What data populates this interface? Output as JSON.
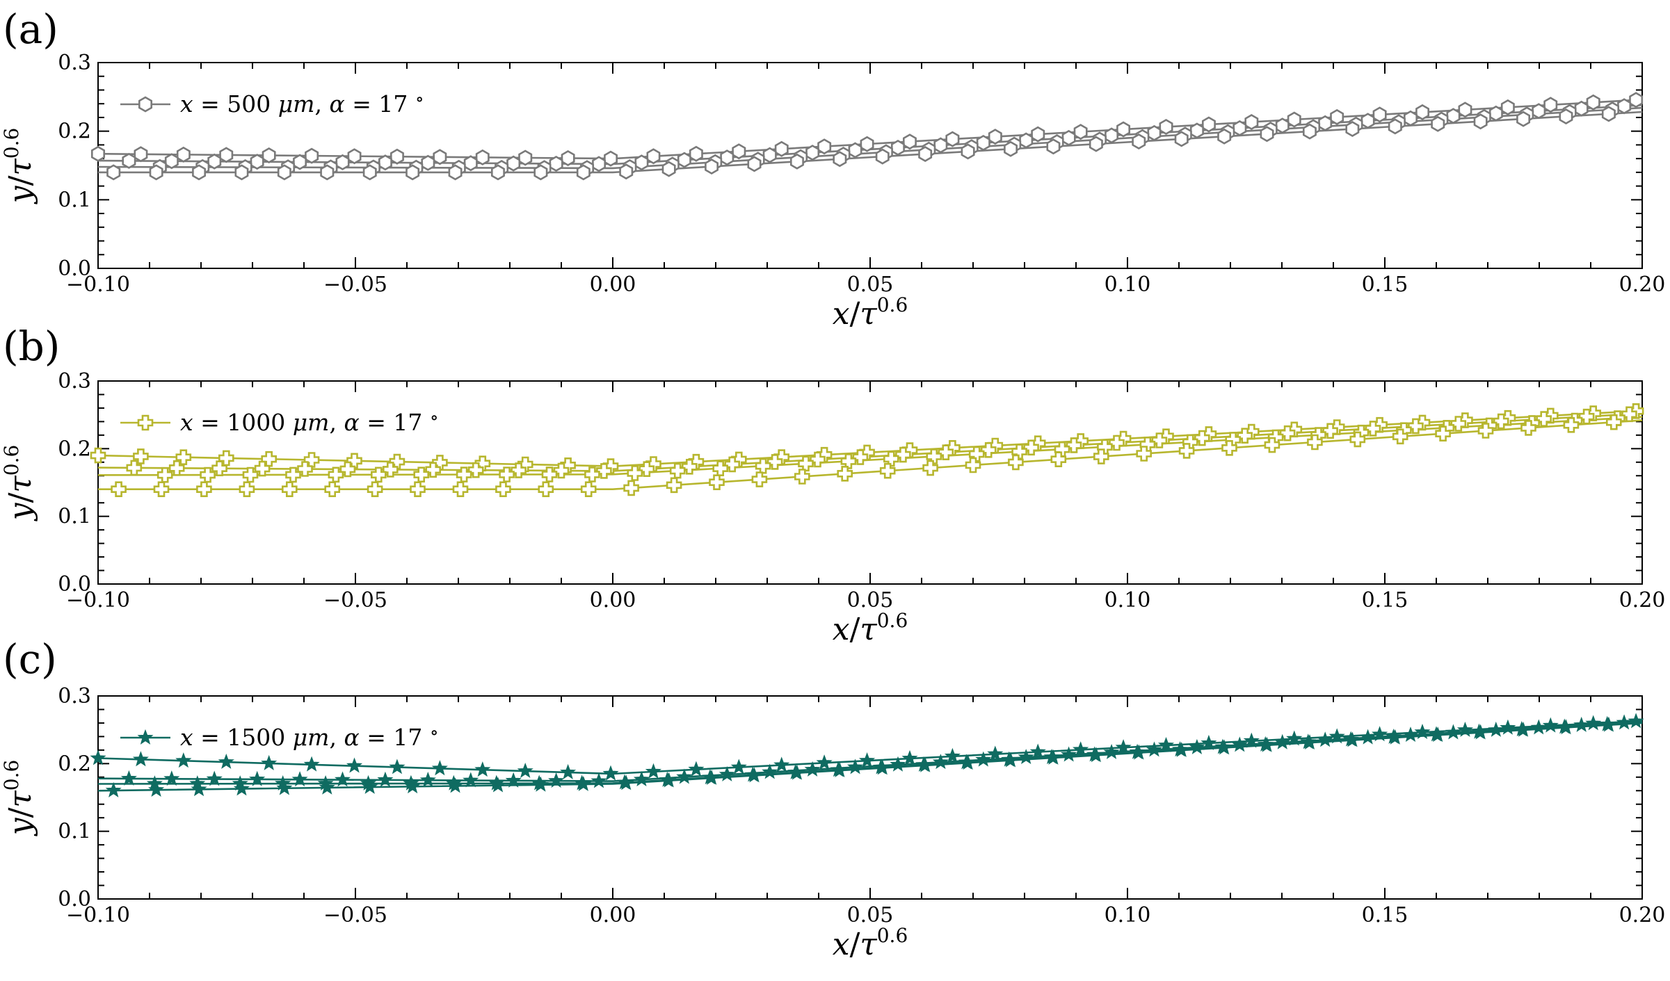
{
  "chart_data": [
    {
      "type": "line",
      "panel_label": "(a)",
      "color": "#7a7a7a",
      "marker": "hexagon",
      "legend": {
        "var": "x",
        "eq": " = 500 ",
        "unit": "μm",
        "sep": ", ",
        "alpha": "α",
        "eq2": " = 17 ",
        "deg": "∘",
        "placement": "upper-left"
      },
      "xlabel": {
        "num": "x",
        "den": "τ",
        "exp": "0.6"
      },
      "ylabel": {
        "num": "y",
        "den": "τ",
        "exp": "0.6"
      },
      "xlim": [
        -0.1,
        0.2
      ],
      "ylim": [
        0.0,
        0.3
      ],
      "xticks": [
        "−0.10",
        "−0.05",
        "0.00",
        "0.05",
        "0.10",
        "0.15",
        "0.20"
      ],
      "yticks": [
        "0.0",
        "0.1",
        "0.2",
        "0.3"
      ],
      "series": [
        {
          "y0": 0.167,
          "yv": 0.16,
          "y_end": 0.246,
          "phase": 0.0
        },
        {
          "y0": 0.157,
          "yv": 0.152,
          "y_end": 0.238,
          "phase": 0.006
        },
        {
          "y0": 0.148,
          "yv": 0.146,
          "y_end": 0.234,
          "phase": 0.012
        },
        {
          "y0": 0.14,
          "yv": 0.14,
          "y_end": 0.228,
          "phase": 0.003
        }
      ]
    },
    {
      "type": "line",
      "panel_label": "(b)",
      "color": "#b7b62e",
      "marker": "plus",
      "legend": {
        "var": "x",
        "eq": " = 1000 ",
        "unit": "μm",
        "sep": ", ",
        "alpha": "α",
        "eq2": " = 17 ",
        "deg": "∘",
        "placement": "upper-left"
      },
      "xlabel": {
        "num": "x",
        "den": "τ",
        "exp": "0.6"
      },
      "ylabel": {
        "num": "y",
        "den": "τ",
        "exp": "0.6"
      },
      "xlim": [
        -0.1,
        0.2
      ],
      "ylim": [
        0.0,
        0.3
      ],
      "xticks": [
        "−0.10",
        "−0.05",
        "0.00",
        "0.05",
        "0.10",
        "0.15",
        "0.20"
      ],
      "yticks": [
        "0.0",
        "0.1",
        "0.2",
        "0.3"
      ],
      "series": [
        {
          "y0": 0.19,
          "yv": 0.174,
          "y_end": 0.256,
          "phase": 0.0
        },
        {
          "y0": 0.172,
          "yv": 0.167,
          "y_end": 0.252,
          "phase": 0.007
        },
        {
          "y0": 0.161,
          "yv": 0.162,
          "y_end": 0.247,
          "phase": 0.013
        },
        {
          "y0": 0.14,
          "yv": 0.14,
          "y_end": 0.242,
          "phase": 0.004
        }
      ]
    },
    {
      "type": "line",
      "panel_label": "(c)",
      "color": "#0f6b61",
      "marker": "star",
      "legend": {
        "var": "x",
        "eq": " = 1500 ",
        "unit": "μm",
        "sep": ", ",
        "alpha": "α",
        "eq2": " = 17 ",
        "deg": "∘",
        "placement": "upper-left"
      },
      "xlabel": {
        "num": "x",
        "den": "τ",
        "exp": "0.6"
      },
      "ylabel": {
        "num": "y",
        "den": "τ",
        "exp": "0.6"
      },
      "xlim": [
        -0.1,
        0.2
      ],
      "ylim": [
        0.0,
        0.3
      ],
      "xticks": [
        "−0.10",
        "−0.05",
        "0.00",
        "0.05",
        "0.10",
        "0.15",
        "0.20"
      ],
      "yticks": [
        "0.0",
        "0.1",
        "0.2",
        "0.3"
      ],
      "series": [
        {
          "y0": 0.208,
          "yv": 0.185,
          "y_end": 0.263,
          "phase": 0.0
        },
        {
          "y0": 0.178,
          "yv": 0.174,
          "y_end": 0.262,
          "phase": 0.006
        },
        {
          "y0": 0.17,
          "yv": 0.171,
          "y_end": 0.261,
          "phase": 0.011
        },
        {
          "y0": 0.16,
          "yv": 0.17,
          "y_end": 0.26,
          "phase": 0.003
        }
      ]
    }
  ]
}
